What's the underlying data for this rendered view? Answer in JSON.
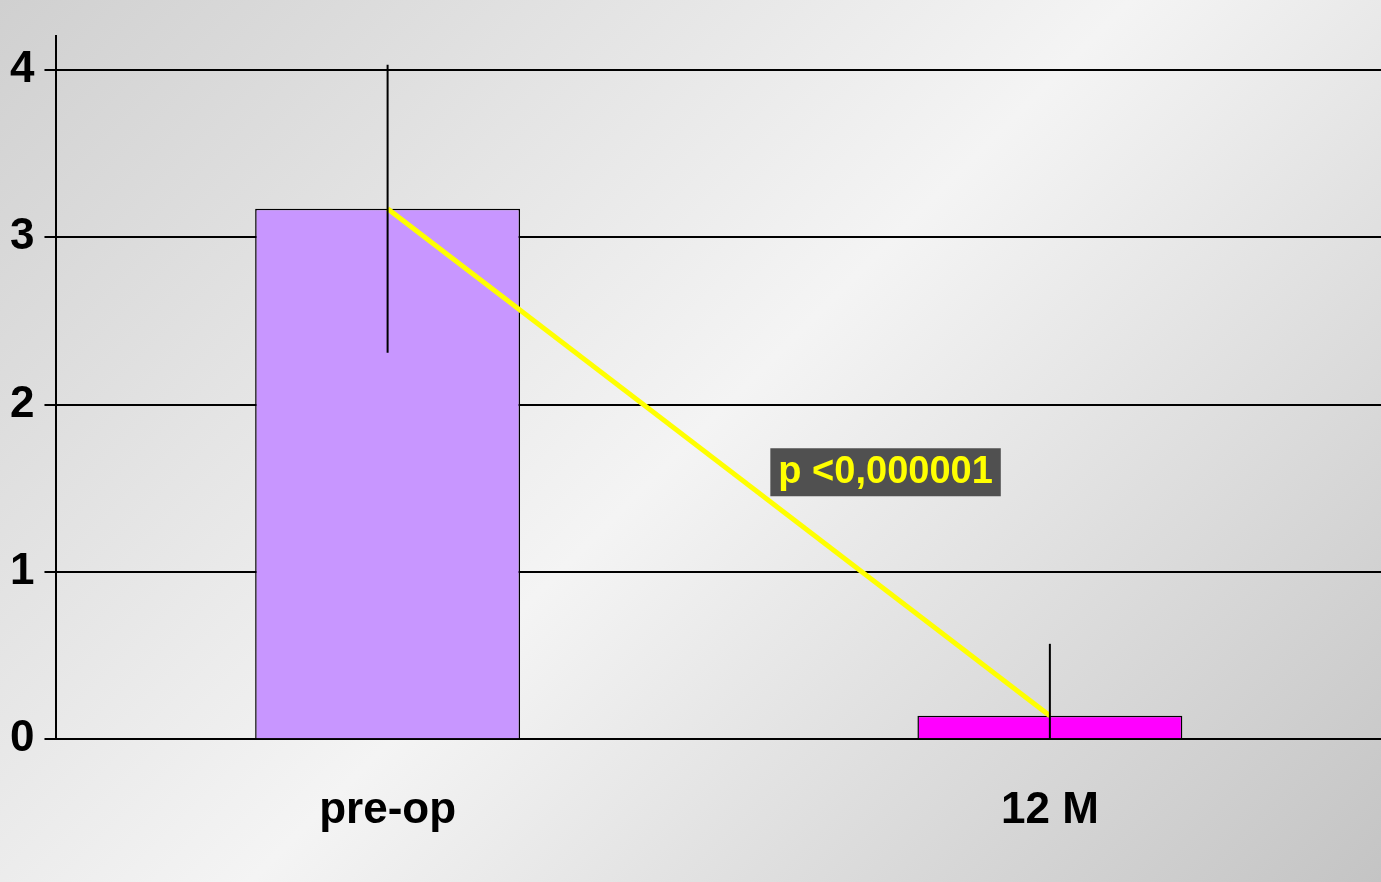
{
  "chart_data": {
    "type": "bar",
    "categories": [
      "pre-op",
      "12 M"
    ],
    "series": [
      {
        "colors": [
          "#c896ff",
          "#ff00ff"
        ],
        "values": [
          3.17,
          0.14
        ],
        "errors": [
          [
            2.31,
            4.03
          ],
          [
            0,
            0.57
          ]
        ]
      },
      {
        "type": "line",
        "color": "#ffff00",
        "values": [
          3.17,
          0.14
        ]
      }
    ],
    "ylim": [
      0,
      4.2
    ],
    "yticks": [
      0,
      1,
      2,
      3,
      4
    ],
    "grid": "y",
    "legend": false,
    "marker": "none",
    "line_style": "solid",
    "annotations": [
      "p <0,000001"
    ]
  }
}
